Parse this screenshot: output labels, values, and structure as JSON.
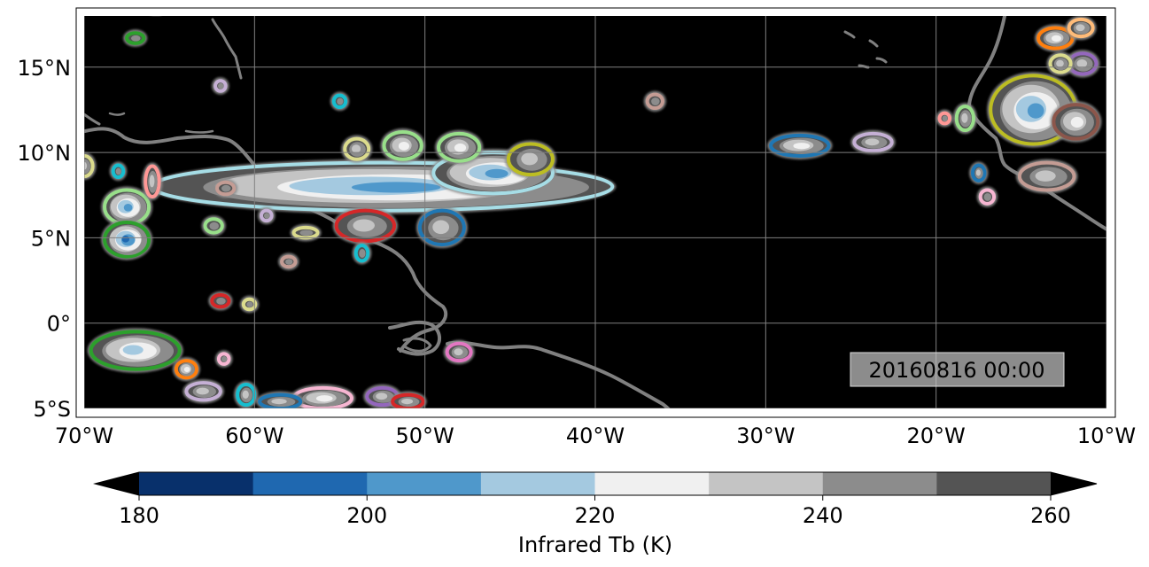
{
  "map": {
    "extent": {
      "lon_min": -70,
      "lon_max": -10,
      "lat_min": -5,
      "lat_max": 18
    },
    "lon_ticks": [
      {
        "value": -70,
        "label": "70°W"
      },
      {
        "value": -60,
        "label": "60°W"
      },
      {
        "value": -50,
        "label": "50°W"
      },
      {
        "value": -40,
        "label": "40°W"
      },
      {
        "value": -30,
        "label": "30°W"
      },
      {
        "value": -20,
        "label": "20°W"
      },
      {
        "value": -10,
        "label": "10°W"
      }
    ],
    "lat_ticks": [
      {
        "value": 15,
        "label": "15°N"
      },
      {
        "value": 10,
        "label": "10°N"
      },
      {
        "value": 5,
        "label": "5°N"
      },
      {
        "value": 0,
        "label": "0°"
      },
      {
        "value": -5,
        "label": "5°S"
      }
    ],
    "gridlines": true,
    "background_color": "#000000",
    "coastline_color": "#808080",
    "timestamp": "20160816 00:00",
    "timestamp_position": "bottom-right"
  },
  "colorbar": {
    "label": "Infrared Tb (K)",
    "min": 180,
    "max": 260,
    "step": 10,
    "extend": "both",
    "colors": [
      "#08306b",
      "#1f68b0",
      "#4f98cb",
      "#a4c9e0",
      "#f0f0f0",
      "#c4c4c4",
      "#8c8c8c",
      "#545454"
    ],
    "under_color": "#000000",
    "over_color": "#000000",
    "tick_values": [
      180,
      200,
      220,
      240,
      260
    ],
    "tick_labels": [
      "180",
      "200",
      "220",
      "240",
      "260"
    ]
  },
  "cloud_systems": [
    {
      "lon": -52.5,
      "lat": 8.0,
      "rx": 13.5,
      "ry": 1.4,
      "outline": "#a6dde6",
      "min_tb": 200
    },
    {
      "lon": -46.0,
      "lat": 8.8,
      "rx": 3.5,
      "ry": 1.2,
      "outline": "#a6dde6",
      "min_tb": 200
    },
    {
      "lon": -43.8,
      "lat": 9.6,
      "rx": 1.3,
      "ry": 0.9,
      "outline": "#bcbd22",
      "min_tb": 230
    },
    {
      "lon": -48.0,
      "lat": 10.3,
      "rx": 1.2,
      "ry": 0.8,
      "outline": "#98df8a",
      "min_tb": 220
    },
    {
      "lon": -49.0,
      "lat": 5.6,
      "rx": 1.3,
      "ry": 1.0,
      "outline": "#1f77b4",
      "min_tb": 230
    },
    {
      "lon": -53.5,
      "lat": 5.7,
      "rx": 1.7,
      "ry": 0.9,
      "outline": "#d62728",
      "min_tb": 230
    },
    {
      "lon": -51.3,
      "lat": 10.4,
      "rx": 1.1,
      "ry": 0.8,
      "outline": "#98df8a",
      "min_tb": 220
    },
    {
      "lon": -54.0,
      "lat": 10.2,
      "rx": 0.7,
      "ry": 0.6,
      "outline": "#dbdb8d",
      "min_tb": 230
    },
    {
      "lon": -67.5,
      "lat": 6.8,
      "rx": 1.3,
      "ry": 1.0,
      "outline": "#98df8a",
      "min_tb": 200
    },
    {
      "lon": -67.5,
      "lat": 4.9,
      "rx": 1.3,
      "ry": 1.0,
      "outline": "#2ca02c",
      "min_tb": 190
    },
    {
      "lon": -66.0,
      "lat": 8.3,
      "rx": 0.4,
      "ry": 0.9,
      "outline": "#ff9896",
      "min_tb": 230
    },
    {
      "lon": -70.0,
      "lat": 9.2,
      "rx": 0.5,
      "ry": 0.6,
      "outline": "#dbdb8d",
      "min_tb": 230
    },
    {
      "lon": -67.0,
      "lat": -1.6,
      "rx": 2.6,
      "ry": 1.1,
      "outline": "#2ca02c",
      "min_tb": 210
    },
    {
      "lon": -64.0,
      "lat": -2.7,
      "rx": 0.6,
      "ry": 0.5,
      "outline": "#ff7f0e",
      "min_tb": 220
    },
    {
      "lon": -48.0,
      "lat": -1.7,
      "rx": 0.7,
      "ry": 0.5,
      "outline": "#e377c2",
      "min_tb": 230
    },
    {
      "lon": -56.0,
      "lat": -4.4,
      "rx": 1.7,
      "ry": 0.6,
      "outline": "#f7b6d2",
      "min_tb": 220
    },
    {
      "lon": -52.5,
      "lat": -4.3,
      "rx": 0.9,
      "ry": 0.5,
      "outline": "#9467bd",
      "min_tb": 230
    },
    {
      "lon": -51.0,
      "lat": -4.6,
      "rx": 0.9,
      "ry": 0.4,
      "outline": "#d62728",
      "min_tb": 230
    },
    {
      "lon": -28.0,
      "lat": 10.4,
      "rx": 1.7,
      "ry": 0.6,
      "outline": "#1f77b4",
      "min_tb": 220
    },
    {
      "lon": -23.7,
      "lat": 10.6,
      "rx": 1.1,
      "ry": 0.5,
      "outline": "#c5b0d5",
      "min_tb": 230
    },
    {
      "lon": -14.3,
      "lat": 12.5,
      "rx": 2.5,
      "ry": 2.0,
      "outline": "#bcbd22",
      "min_tb": 200
    },
    {
      "lon": -11.8,
      "lat": 11.8,
      "rx": 1.3,
      "ry": 1.0,
      "outline": "#8c564b",
      "min_tb": 220
    },
    {
      "lon": -13.0,
      "lat": 16.7,
      "rx": 1.0,
      "ry": 0.6,
      "outline": "#ff7f0e",
      "min_tb": 220
    },
    {
      "lon": -11.4,
      "lat": 15.2,
      "rx": 0.8,
      "ry": 0.6,
      "outline": "#9467bd",
      "min_tb": 230
    },
    {
      "lon": -13.5,
      "lat": 8.6,
      "rx": 1.6,
      "ry": 0.8,
      "outline": "#c49c94",
      "min_tb": 230
    },
    {
      "lon": -18.3,
      "lat": 12.0,
      "rx": 0.5,
      "ry": 0.7,
      "outline": "#98df8a",
      "min_tb": 230
    },
    {
      "lon": -55.0,
      "lat": 13.0,
      "rx": 0.35,
      "ry": 0.35,
      "outline": "#17becf",
      "min_tb": 240
    },
    {
      "lon": -53.7,
      "lat": 4.1,
      "rx": 0.35,
      "ry": 0.45,
      "outline": "#17becf",
      "min_tb": 240
    },
    {
      "lon": -36.5,
      "lat": 13.0,
      "rx": 0.45,
      "ry": 0.4,
      "outline": "#c49c94",
      "min_tb": 240
    },
    {
      "lon": -17.5,
      "lat": 8.8,
      "rx": 0.35,
      "ry": 0.45,
      "outline": "#1f77b4",
      "min_tb": 230
    },
    {
      "lon": -17.0,
      "lat": 7.4,
      "rx": 0.4,
      "ry": 0.4,
      "outline": "#f7b6d2",
      "min_tb": 240
    },
    {
      "lon": -19.5,
      "lat": 12.0,
      "rx": 0.3,
      "ry": 0.3,
      "outline": "#ff9896",
      "min_tb": 240
    },
    {
      "lon": -67.0,
      "lat": 16.7,
      "rx": 0.5,
      "ry": 0.3,
      "outline": "#2ca02c",
      "min_tb": 240
    },
    {
      "lon": -62.0,
      "lat": 13.9,
      "rx": 0.3,
      "ry": 0.3,
      "outline": "#c5b0d5",
      "min_tb": 240
    },
    {
      "lon": -68.0,
      "lat": 8.9,
      "rx": 0.3,
      "ry": 0.35,
      "outline": "#17becf",
      "min_tb": 240
    },
    {
      "lon": -61.7,
      "lat": 7.9,
      "rx": 0.5,
      "ry": 0.35,
      "outline": "#c49c94",
      "min_tb": 240
    },
    {
      "lon": -62.4,
      "lat": 5.7,
      "rx": 0.5,
      "ry": 0.4,
      "outline": "#98df8a",
      "min_tb": 240
    },
    {
      "lon": -59.3,
      "lat": 6.3,
      "rx": 0.3,
      "ry": 0.3,
      "outline": "#c5b0d5",
      "min_tb": 240
    },
    {
      "lon": -57.0,
      "lat": 5.3,
      "rx": 0.7,
      "ry": 0.3,
      "outline": "#dbdb8d",
      "min_tb": 240
    },
    {
      "lon": -58.0,
      "lat": 3.6,
      "rx": 0.4,
      "ry": 0.3,
      "outline": "#c49c94",
      "min_tb": 240
    },
    {
      "lon": -62.0,
      "lat": 1.3,
      "rx": 0.5,
      "ry": 0.35,
      "outline": "#d62728",
      "min_tb": 240
    },
    {
      "lon": -60.3,
      "lat": 1.1,
      "rx": 0.35,
      "ry": 0.3,
      "outline": "#dbdb8d",
      "min_tb": 240
    },
    {
      "lon": -61.8,
      "lat": -2.1,
      "rx": 0.3,
      "ry": 0.3,
      "outline": "#f7b6d2",
      "min_tb": 240
    },
    {
      "lon": -63.0,
      "lat": -4.0,
      "rx": 1.0,
      "ry": 0.5,
      "outline": "#c5b0d5",
      "min_tb": 230
    },
    {
      "lon": -60.5,
      "lat": -4.2,
      "rx": 0.5,
      "ry": 0.6,
      "outline": "#17becf",
      "min_tb": 230
    },
    {
      "lon": -58.5,
      "lat": -4.6,
      "rx": 1.2,
      "ry": 0.4,
      "outline": "#1f77b4",
      "min_tb": 230
    },
    {
      "lon": -12.7,
      "lat": 15.2,
      "rx": 0.6,
      "ry": 0.5,
      "outline": "#dbdb8d",
      "min_tb": 230
    },
    {
      "lon": -11.5,
      "lat": 17.3,
      "rx": 0.7,
      "ry": 0.5,
      "outline": "#ffbb78",
      "min_tb": 230
    }
  ]
}
